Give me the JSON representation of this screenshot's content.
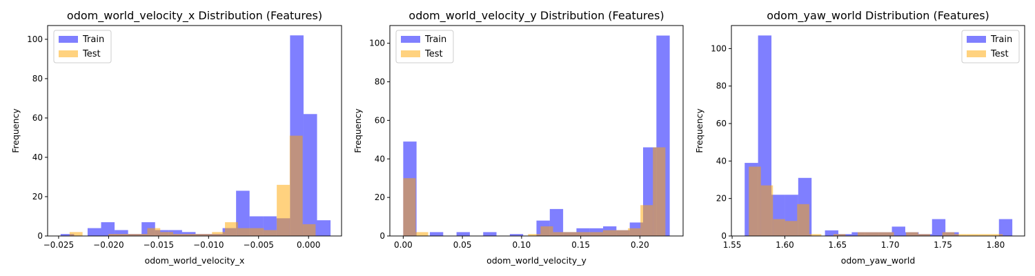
{
  "colors": {
    "train": "#0000ff",
    "test": "#ffa500",
    "bar_alpha": 0.5,
    "axis": "#000000"
  },
  "chart_data": [
    {
      "type": "histogram",
      "title": "odom_world_velocity_x Distribution (Features)",
      "xlabel": "odom_world_velocity_x",
      "ylabel": "Frequency",
      "xlim": [
        -0.0261,
        0.0033
      ],
      "ylim": [
        0,
        107
      ],
      "xticks": [
        -0.025,
        -0.02,
        -0.015,
        -0.01,
        -0.005,
        0.0
      ],
      "xtick_labels": [
        "−0.025",
        "−0.020",
        "−0.015",
        "−0.010",
        "−0.005",
        "0.000"
      ],
      "yticks": [
        0,
        20,
        40,
        60,
        80,
        100
      ],
      "legend": {
        "position": "top-left",
        "entries": [
          "Train",
          "Test"
        ]
      },
      "series": [
        {
          "name": "Train",
          "color": "#0000ff",
          "bin_start": -0.0248,
          "bin_width": 0.00135,
          "counts": [
            1,
            0,
            4,
            7,
            3,
            1,
            7,
            3,
            3,
            2,
            1,
            1,
            4,
            23,
            10,
            10,
            9,
            102,
            62,
            8
          ]
        },
        {
          "name": "Test",
          "color": "#ffa500",
          "bin_start": -0.0239,
          "bin_width": 0.001295,
          "counts": [
            2,
            0,
            0,
            1,
            1,
            1,
            4,
            2,
            1,
            1,
            1,
            2,
            7,
            4,
            4,
            3,
            26,
            51,
            6
          ]
        }
      ]
    },
    {
      "type": "histogram",
      "title": "odom_world_velocity_y Distribution (Features)",
      "xlabel": "odom_world_velocity_y",
      "ylabel": "Frequency",
      "xlim": [
        -0.0113,
        0.2365
      ],
      "ylim": [
        0,
        109.2
      ],
      "xticks": [
        0.0,
        0.05,
        0.1,
        0.15,
        0.2
      ],
      "xtick_labels": [
        "0.00",
        "0.05",
        "0.10",
        "0.15",
        "0.20"
      ],
      "yticks": [
        0,
        20,
        40,
        60,
        80,
        100
      ],
      "legend": {
        "position": "top-left",
        "entries": [
          "Train",
          "Test"
        ]
      },
      "series": [
        {
          "name": "Train",
          "color": "#0000ff",
          "bin_start": 0.0,
          "bin_width": 0.01126,
          "counts": [
            49,
            0,
            2,
            0,
            2,
            0,
            2,
            0,
            1,
            0,
            8,
            14,
            2,
            4,
            4,
            5,
            3,
            7,
            46,
            104
          ]
        },
        {
          "name": "Test",
          "color": "#ffa500",
          "bin_start": 0.0,
          "bin_width": 0.01055,
          "counts": [
            30,
            2,
            0,
            0,
            0,
            0,
            0,
            0,
            0,
            0,
            1,
            5,
            2,
            2,
            2,
            2,
            3,
            3,
            4,
            16,
            46
          ]
        }
      ]
    },
    {
      "type": "histogram",
      "title": "odom_yaw_world Distribution (Features)",
      "xlabel": "odom_yaw_world",
      "ylabel": "Frequency",
      "xlim": [
        1.5493,
        1.8276
      ],
      "ylim": [
        0,
        112.3
      ],
      "xticks": [
        1.55,
        1.6,
        1.65,
        1.7,
        1.75,
        1.8
      ],
      "xtick_labels": [
        "1.55",
        "1.60",
        "1.65",
        "1.70",
        "1.75",
        "1.80"
      ],
      "yticks": [
        0,
        20,
        40,
        60,
        80,
        100
      ],
      "legend": {
        "position": "top-right",
        "entries": [
          "Train",
          "Test"
        ]
      },
      "series": [
        {
          "name": "Train",
          "color": "#0000ff",
          "bin_start": 1.5619,
          "bin_width": 0.0127,
          "counts": [
            39,
            107,
            22,
            22,
            31,
            0,
            3,
            1,
            2,
            2,
            2,
            5,
            2,
            1,
            9,
            2,
            0,
            0,
            0,
            9
          ]
        },
        {
          "name": "Test",
          "color": "#ffa500",
          "bin_start": 1.5658,
          "bin_width": 0.01148,
          "counts": [
            37,
            27,
            9,
            8,
            17,
            1,
            0,
            1,
            0,
            2,
            2,
            2,
            0,
            2,
            1,
            0,
            2,
            1,
            1,
            1,
            1
          ]
        }
      ]
    }
  ]
}
